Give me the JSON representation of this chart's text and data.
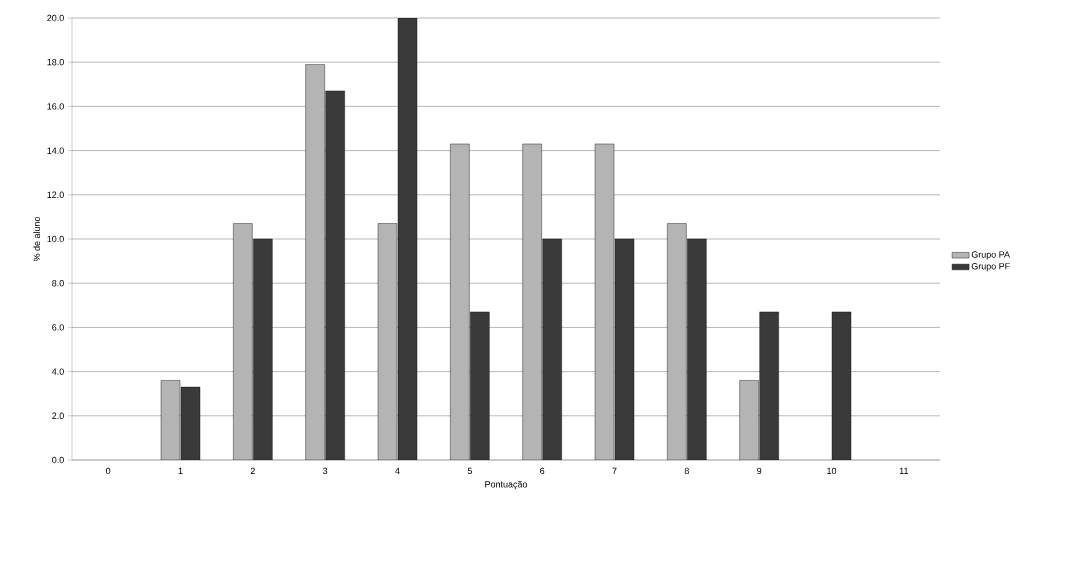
{
  "chart_data": {
    "type": "bar",
    "xlabel": "Pontuação",
    "ylabel": "% de aluno",
    "categories": [
      "0",
      "1",
      "2",
      "3",
      "4",
      "5",
      "6",
      "7",
      "8",
      "9",
      "10",
      "11"
    ],
    "series": [
      {
        "name": "Grupo PA",
        "color": "#b4b4b4",
        "values": [
          0,
          3.6,
          10.7,
          17.9,
          10.7,
          14.3,
          14.3,
          14.3,
          10.7,
          3.6,
          0,
          0
        ]
      },
      {
        "name": "Grupo PF",
        "color": "#3a3a3a",
        "values": [
          0,
          3.3,
          10.0,
          16.7,
          20.0,
          6.7,
          10.0,
          10.0,
          10.0,
          6.7,
          6.7,
          0
        ]
      }
    ],
    "ylim": [
      0,
      20
    ],
    "yticks": [
      {
        "value": 0,
        "label": "0.0"
      },
      {
        "value": 2,
        "label": "2.0"
      },
      {
        "value": 4,
        "label": "4.0"
      },
      {
        "value": 6,
        "label": "6.0"
      },
      {
        "value": 8,
        "label": "8.0"
      },
      {
        "value": 10,
        "label": "10.0"
      },
      {
        "value": 12,
        "label": "12.0"
      },
      {
        "value": 14,
        "label": "14.0"
      },
      {
        "value": 16,
        "label": "16.0"
      },
      {
        "value": 18,
        "label": "18.0"
      },
      {
        "value": 20,
        "label": "20.0"
      }
    ],
    "grid": "y",
    "legend": "right"
  }
}
